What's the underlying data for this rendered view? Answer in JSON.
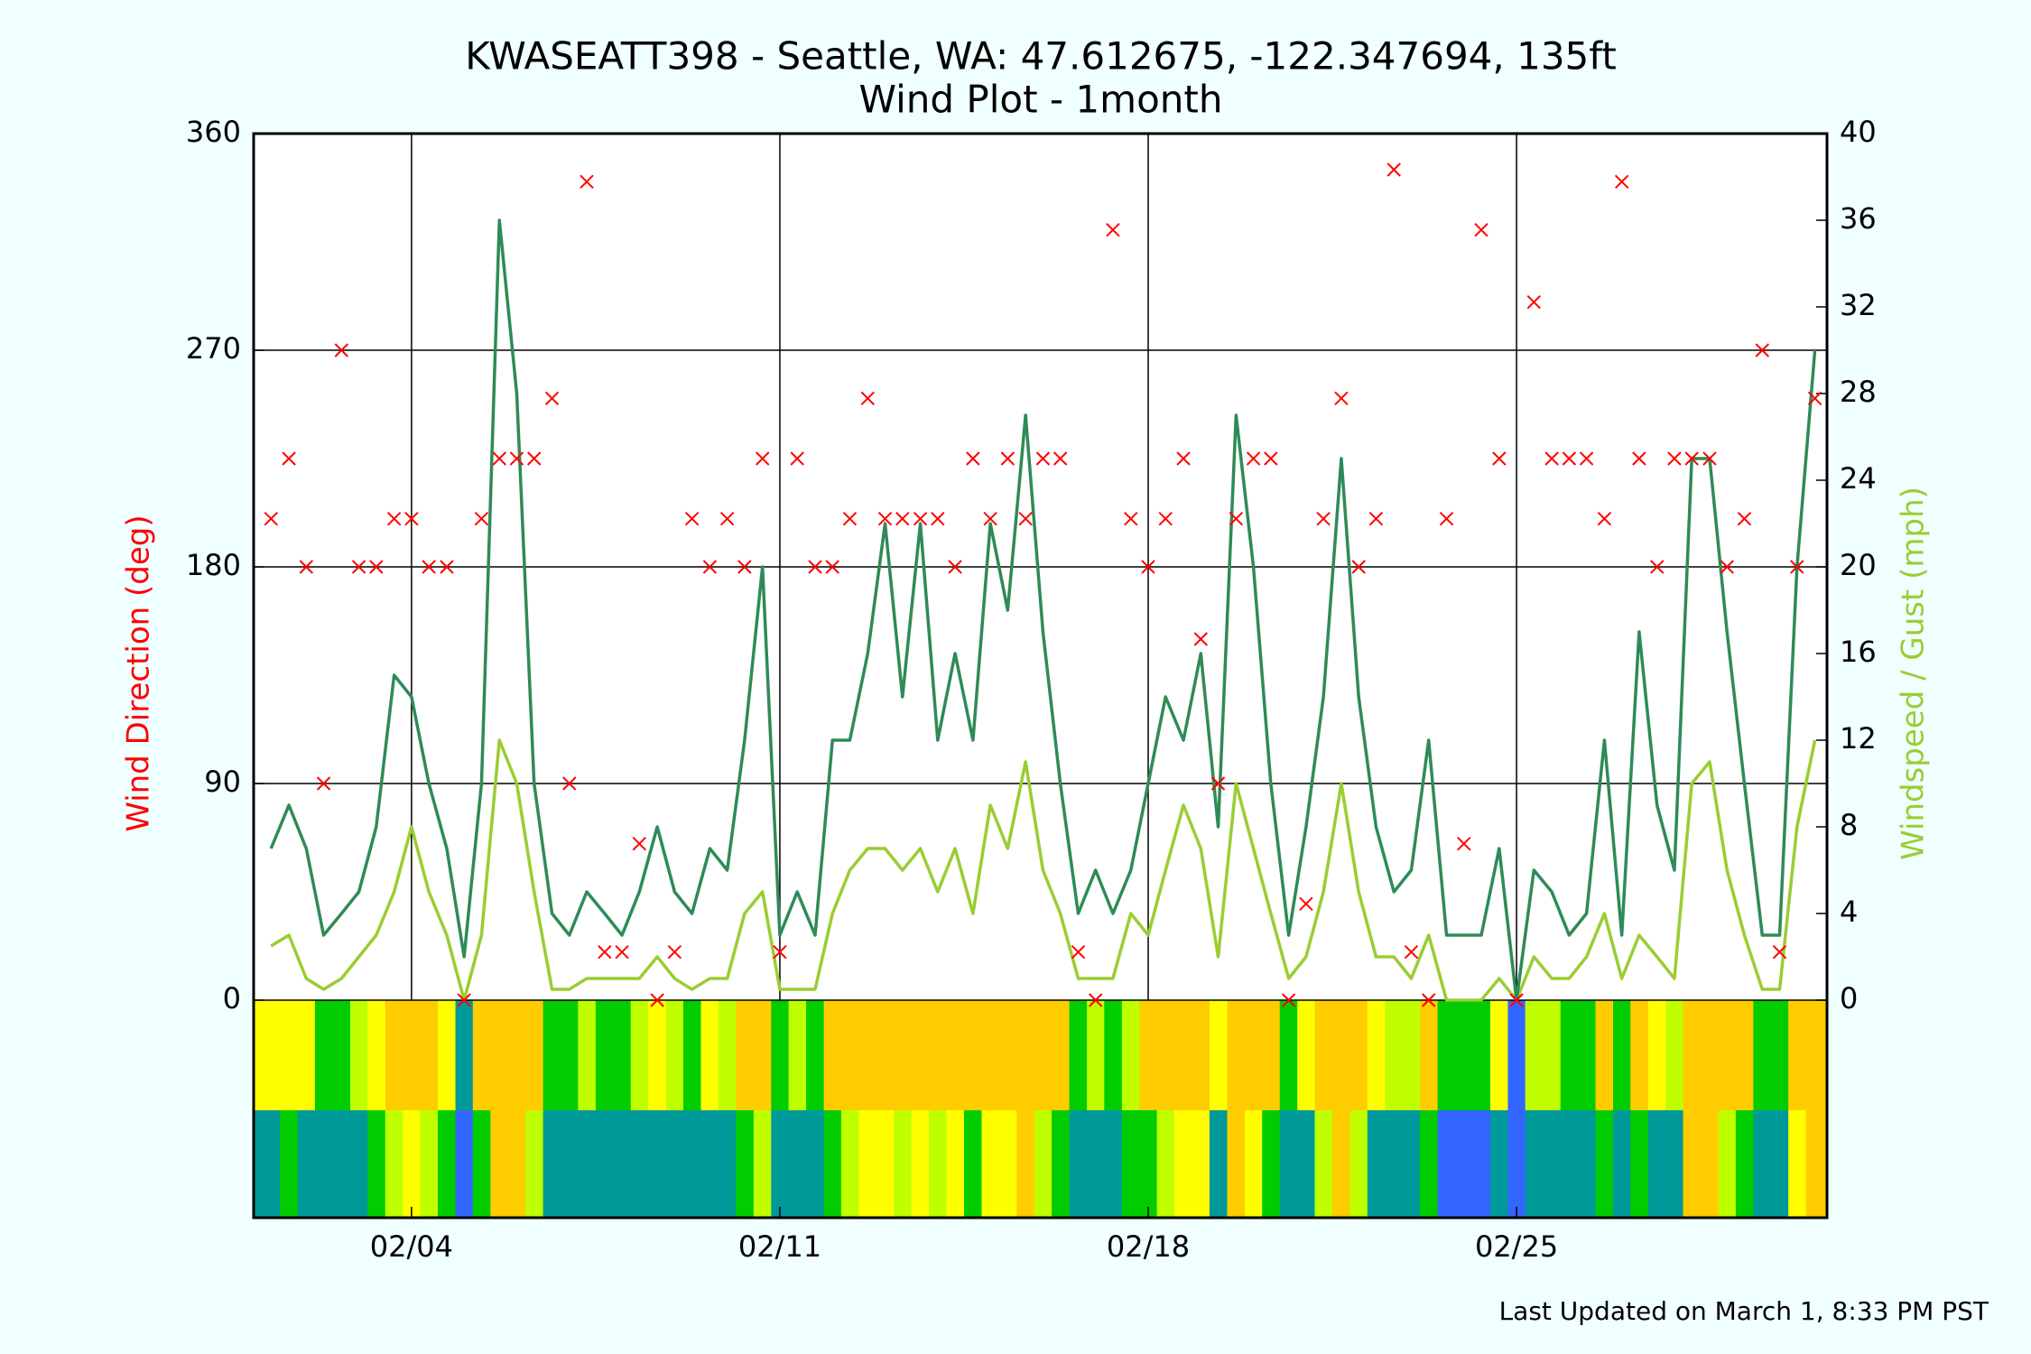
{
  "chart_data": {
    "type": "combo",
    "title": "KWASEATT398 - Seattle, WA: 47.612675, -122.347694, 135ft",
    "subtitle": "Wind Plot - 1month",
    "ylabel": "Wind Direction (deg)",
    "y2label": "Windspeed / Gust (mph)",
    "footer": "Last Updated on March 1, 8:33 PM PST",
    "x": [
      1.33,
      1.67,
      2,
      2.33,
      2.67,
      3,
      3.33,
      3.67,
      4,
      4.33,
      4.67,
      5,
      5.33,
      5.67,
      6,
      6.33,
      6.67,
      7,
      7.33,
      7.67,
      8,
      8.33,
      8.67,
      9,
      9.33,
      9.67,
      10,
      10.33,
      10.67,
      11,
      11.33,
      11.67,
      12,
      12.33,
      12.67,
      13,
      13.33,
      13.67,
      14,
      14.33,
      14.67,
      15,
      15.33,
      15.67,
      16,
      16.33,
      16.67,
      17,
      17.33,
      17.67,
      18,
      18.33,
      18.67,
      19,
      19.33,
      19.67,
      20,
      20.33,
      20.67,
      21,
      21.33,
      21.67,
      22,
      22.33,
      22.67,
      23,
      23.33,
      23.67,
      24,
      24.33,
      24.67,
      25,
      25.33,
      25.67,
      26,
      26.33,
      26.67,
      27,
      27.33,
      27.67,
      28,
      28.33,
      28.67,
      29,
      29.33,
      29.67,
      30,
      30.33,
      30.67
    ],
    "series": [
      {
        "type": "scatter",
        "marker": "x",
        "color": "#ff0000",
        "values": [
          200,
          225,
          180,
          90,
          270,
          180,
          180,
          200,
          200,
          180,
          180,
          0,
          200,
          225,
          225,
          225,
          250,
          90,
          340,
          20,
          20,
          65,
          0,
          20,
          200,
          180,
          200,
          180,
          225,
          20,
          225,
          180,
          180,
          200,
          250,
          200,
          200,
          200,
          200,
          180,
          225,
          200,
          225,
          200,
          225,
          225,
          20,
          0,
          320,
          200,
          180,
          200,
          225,
          150,
          90,
          200,
          225,
          225,
          0,
          40,
          200,
          250,
          180,
          200,
          345,
          20,
          0,
          200,
          65,
          320,
          225,
          0,
          290,
          225,
          225,
          225,
          200,
          340,
          225,
          180,
          225,
          225,
          225,
          180,
          200,
          270,
          20,
          180,
          250
        ]
      },
      {
        "type": "line",
        "axis": "y2",
        "color": "#2e8b57",
        "values": [
          7,
          9,
          7,
          3,
          4,
          5,
          8,
          15,
          14,
          10,
          7,
          2,
          10,
          36,
          28,
          10,
          4,
          3,
          5,
          4,
          3,
          5,
          8,
          5,
          4,
          7,
          6,
          12,
          20,
          3,
          5,
          3,
          12,
          12,
          16,
          22,
          14,
          22,
          12,
          16,
          12,
          22,
          18,
          27,
          17,
          10,
          4,
          6,
          4,
          6,
          10,
          14,
          12,
          16,
          8,
          27,
          20,
          10,
          3,
          8,
          14,
          25,
          14,
          8,
          5,
          6,
          12,
          3,
          3,
          3,
          7,
          0,
          6,
          5,
          3,
          4,
          12,
          3,
          17,
          9,
          6,
          25,
          25,
          17,
          10,
          3,
          3,
          20,
          30
        ]
      },
      {
        "type": "line",
        "axis": "y2",
        "color": "#9acd32",
        "values": [
          2.5,
          3,
          1,
          0.5,
          1,
          2,
          3,
          5,
          8,
          5,
          3,
          0,
          3,
          12,
          10,
          5,
          0.5,
          0.5,
          1,
          1,
          1,
          1,
          2,
          1,
          0.5,
          1,
          1,
          4,
          5,
          0.5,
          0.5,
          0.5,
          4,
          6,
          7,
          7,
          6,
          7,
          5,
          7,
          4,
          9,
          7,
          11,
          6,
          4,
          1,
          1,
          1,
          4,
          3,
          6,
          9,
          7,
          2,
          10,
          7,
          4,
          1,
          2,
          5,
          10,
          5,
          2,
          2,
          1,
          3,
          0,
          0,
          0,
          1,
          0,
          2,
          1,
          1,
          2,
          4,
          1,
          3,
          2,
          1,
          10,
          11,
          6,
          3,
          0.5,
          0.5,
          8,
          12
        ]
      }
    ],
    "xlim": [
      1,
      30.9
    ],
    "xticks": [
      {
        "value": 4,
        "label": "02/04"
      },
      {
        "value": 11,
        "label": "02/11"
      },
      {
        "value": 18,
        "label": "02/18"
      },
      {
        "value": 25,
        "label": "02/25"
      }
    ],
    "ylim": [
      0,
      360
    ],
    "yticks": [
      0,
      90,
      180,
      270,
      360
    ],
    "y2lim": [
      0,
      40
    ],
    "y2ticks": [
      0,
      4,
      8,
      12,
      16,
      20,
      24,
      28,
      32,
      36,
      40
    ],
    "grid": true,
    "color_bands": {
      "breaks": [
        0.5,
        3,
        5,
        7,
        10
      ],
      "colors": [
        "#3366ff",
        "#009999",
        "#00cc00",
        "#bfff00",
        "#ffff00",
        "#ffcc00"
      ]
    }
  }
}
